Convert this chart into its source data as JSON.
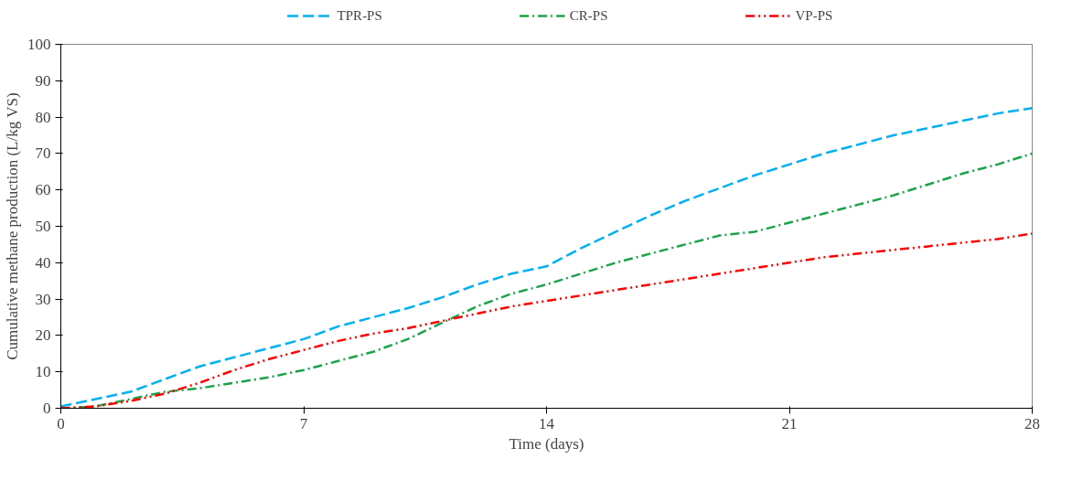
{
  "chart_data": {
    "type": "line",
    "xlabel": "Time (days)",
    "ylabel": "Cumulative methane production (L/kg VS)",
    "x": [
      0,
      1,
      2,
      3,
      4,
      5,
      6,
      7,
      8,
      9,
      10,
      11,
      12,
      13,
      14,
      15,
      16,
      17,
      18,
      19,
      20,
      21,
      22,
      23,
      24,
      25,
      26,
      27,
      28
    ],
    "series": [
      {
        "name": "TPR-PS",
        "color": "#00b0f0",
        "line_style": "dashed",
        "values": [
          0.5,
          2.5,
          4.5,
          8,
          11.5,
          14,
          16.5,
          19,
          22.5,
          25,
          27.5,
          30.5,
          34,
          37,
          39,
          44,
          48.5,
          53,
          57,
          60.5,
          64,
          67,
          70,
          72.5,
          75,
          77,
          79,
          81,
          82.5
        ]
      },
      {
        "name": "CR-PS",
        "color": "#1aa34a",
        "line_style": "dashdot",
        "values": [
          0,
          0.5,
          2.5,
          4.5,
          5.5,
          7,
          8.5,
          10.5,
          13,
          15.5,
          19,
          23.5,
          28,
          31.5,
          34,
          37,
          40,
          42.5,
          45,
          47.5,
          48.5,
          51,
          53.5,
          56,
          58.5,
          61.5,
          64.5,
          67,
          70
        ]
      },
      {
        "name": "VP-PS",
        "color": "#ff0000",
        "line_style": "dashdotdot",
        "values": [
          0,
          0.5,
          2,
          4,
          7,
          10.5,
          13.5,
          16,
          18.5,
          20.5,
          22,
          24,
          26,
          28,
          29.5,
          31,
          32.5,
          34,
          35.5,
          37,
          38.5,
          40,
          41.5,
          42.5,
          43.5,
          44.5,
          45.5,
          46.5,
          48
        ]
      }
    ],
    "xlim": [
      0,
      28
    ],
    "xticks": [
      0,
      7,
      14,
      21,
      28
    ],
    "ylim": [
      0,
      100
    ],
    "yticks": [
      0,
      10,
      20,
      30,
      40,
      50,
      60,
      70,
      80,
      90,
      100
    ],
    "grid": false,
    "legend": "top"
  }
}
